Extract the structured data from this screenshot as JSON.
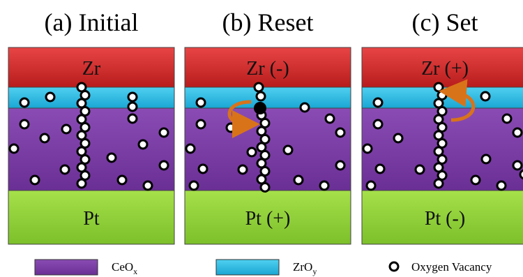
{
  "panels": [
    {
      "title": "(a) Initial",
      "top": "Zr",
      "bottom": "Pt"
    },
    {
      "title": "(b) Reset",
      "top": "Zr (-)",
      "bottom": "Pt (+)"
    },
    {
      "title": "(c) Set",
      "top": "Zr (+)",
      "bottom": "Pt (-)"
    }
  ],
  "legend": [
    {
      "text": "CeO",
      "subscript": "x"
    },
    {
      "text": "ZrO",
      "subscript": "y"
    },
    {
      "text": "Oxygen Vacancy"
    }
  ]
}
